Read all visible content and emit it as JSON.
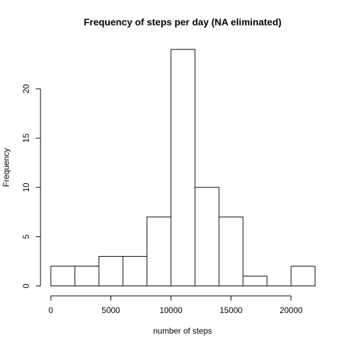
{
  "chart_data": {
    "type": "bar",
    "title": "Frequency of steps per day (NA eliminated)",
    "xlabel": "number of steps",
    "ylabel": "Frequency",
    "bin_edges": [
      0,
      2000,
      4000,
      6000,
      8000,
      10000,
      12000,
      14000,
      16000,
      18000,
      20000,
      22000
    ],
    "values": [
      2,
      2,
      3,
      3,
      7,
      24,
      10,
      7,
      1,
      0,
      2
    ],
    "xlim": [
      0,
      22000
    ],
    "ylim": [
      0,
      24
    ],
    "x_ticks": [
      0,
      5000,
      10000,
      15000,
      20000
    ],
    "x_tick_labels": [
      "0",
      "5000",
      "10000",
      "15000",
      "20000"
    ],
    "y_ticks": [
      0,
      5,
      10,
      15,
      20
    ],
    "y_tick_labels": [
      "0",
      "5",
      "10",
      "15",
      "20"
    ],
    "grid": false,
    "bar_fill": "#ffffff",
    "bar_stroke": "#000000"
  }
}
